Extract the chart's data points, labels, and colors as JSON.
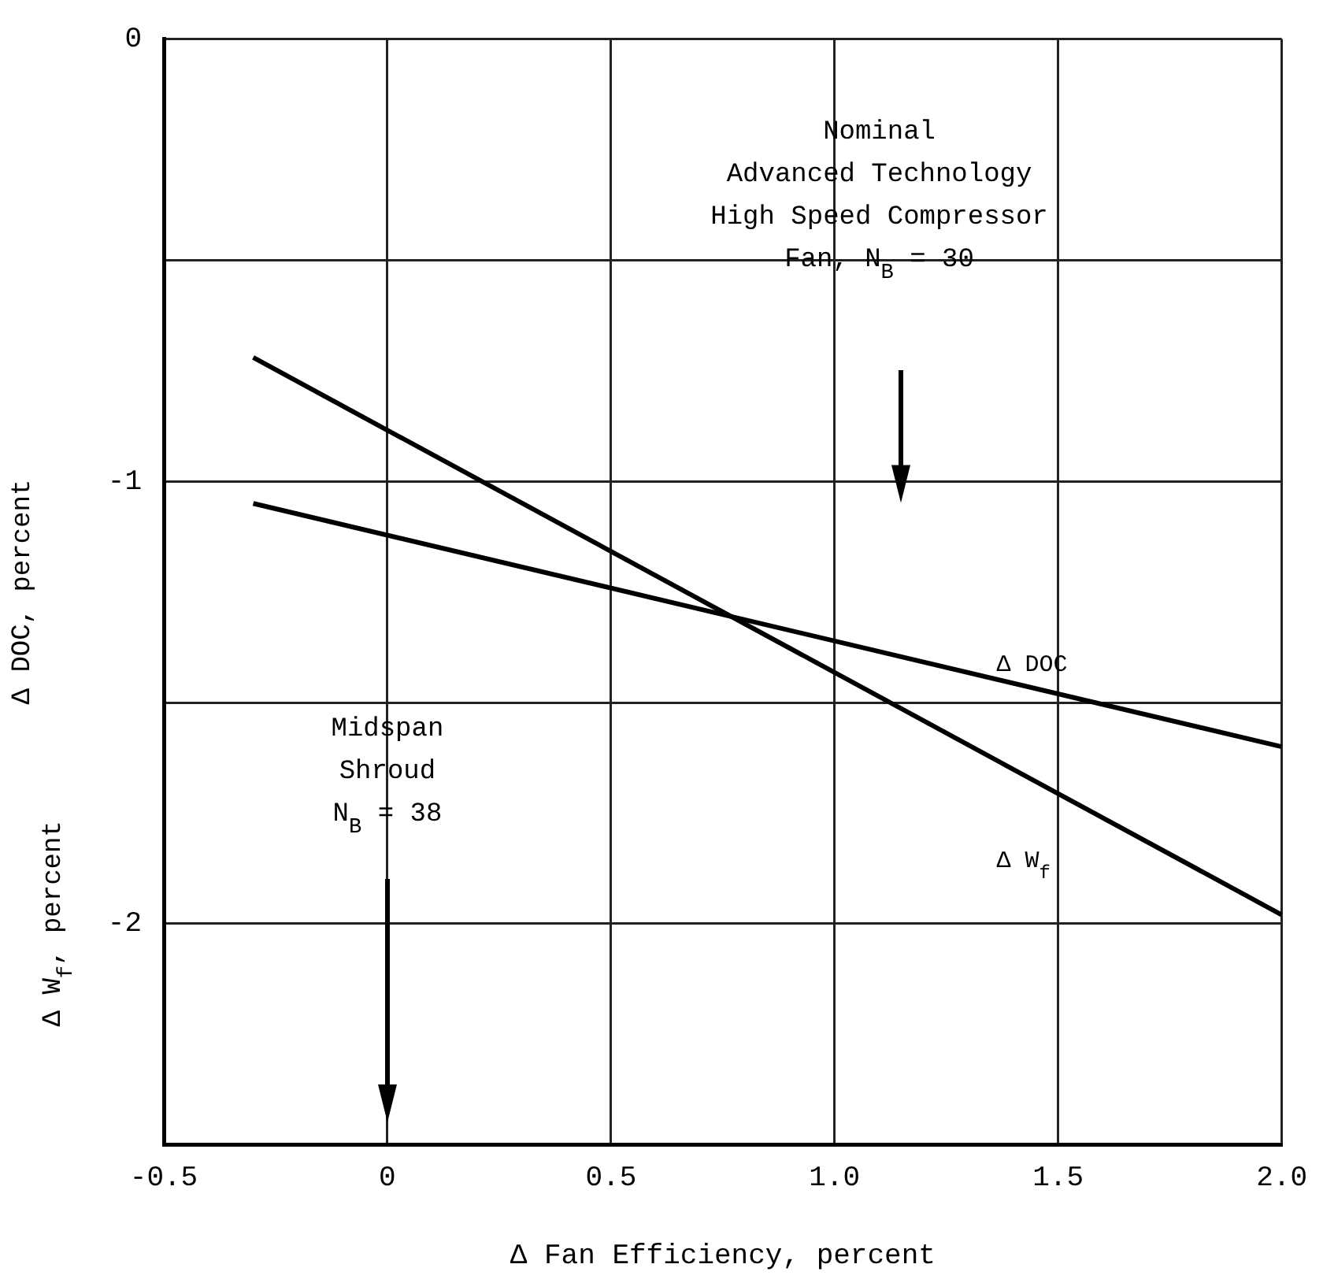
{
  "chart_data": {
    "type": "line",
    "xlabel": "Δ Fan Efficiency, percent",
    "ylabel": "Δ DOC, percent",
    "x": [
      -0.3,
      2.0
    ],
    "series": [
      {
        "name": "Δ DOC",
        "color": "#000000",
        "values": [
          -1.05,
          -1.6
        ]
      },
      {
        "name": "Δ W$_{f}$",
        "color": "#000000",
        "values": [
          -0.72,
          -1.98
        ]
      }
    ],
    "xlim": [
      -0.5,
      2.0
    ],
    "xticks": [
      -0.5,
      0,
      0.5,
      {
        "value": 1,
        "label": "1.0"
      },
      1.5,
      {
        "value": 2,
        "label": "2.0"
      }
    ],
    "ylim": [
      -2.5,
      0
    ],
    "yticks": [
      0,
      {
        "value": -0.5,
        "label": null
      },
      -1,
      {
        "value": -1.5,
        "label": null
      },
      -2,
      {
        "value": -2.5,
        "label": null
      }
    ],
    "annotations": [
      "Nominal\nAdvanced Technology\nHigh Speed Compressor\nFan, N$_{B}$ = 30",
      "Midspan\nShroud\nN$_{B}$ = 38",
      "Δ W$_{f}$, percent"
    ],
    "grid": true,
    "legend": false,
    "marker": "none",
    "line_style": "solid"
  }
}
